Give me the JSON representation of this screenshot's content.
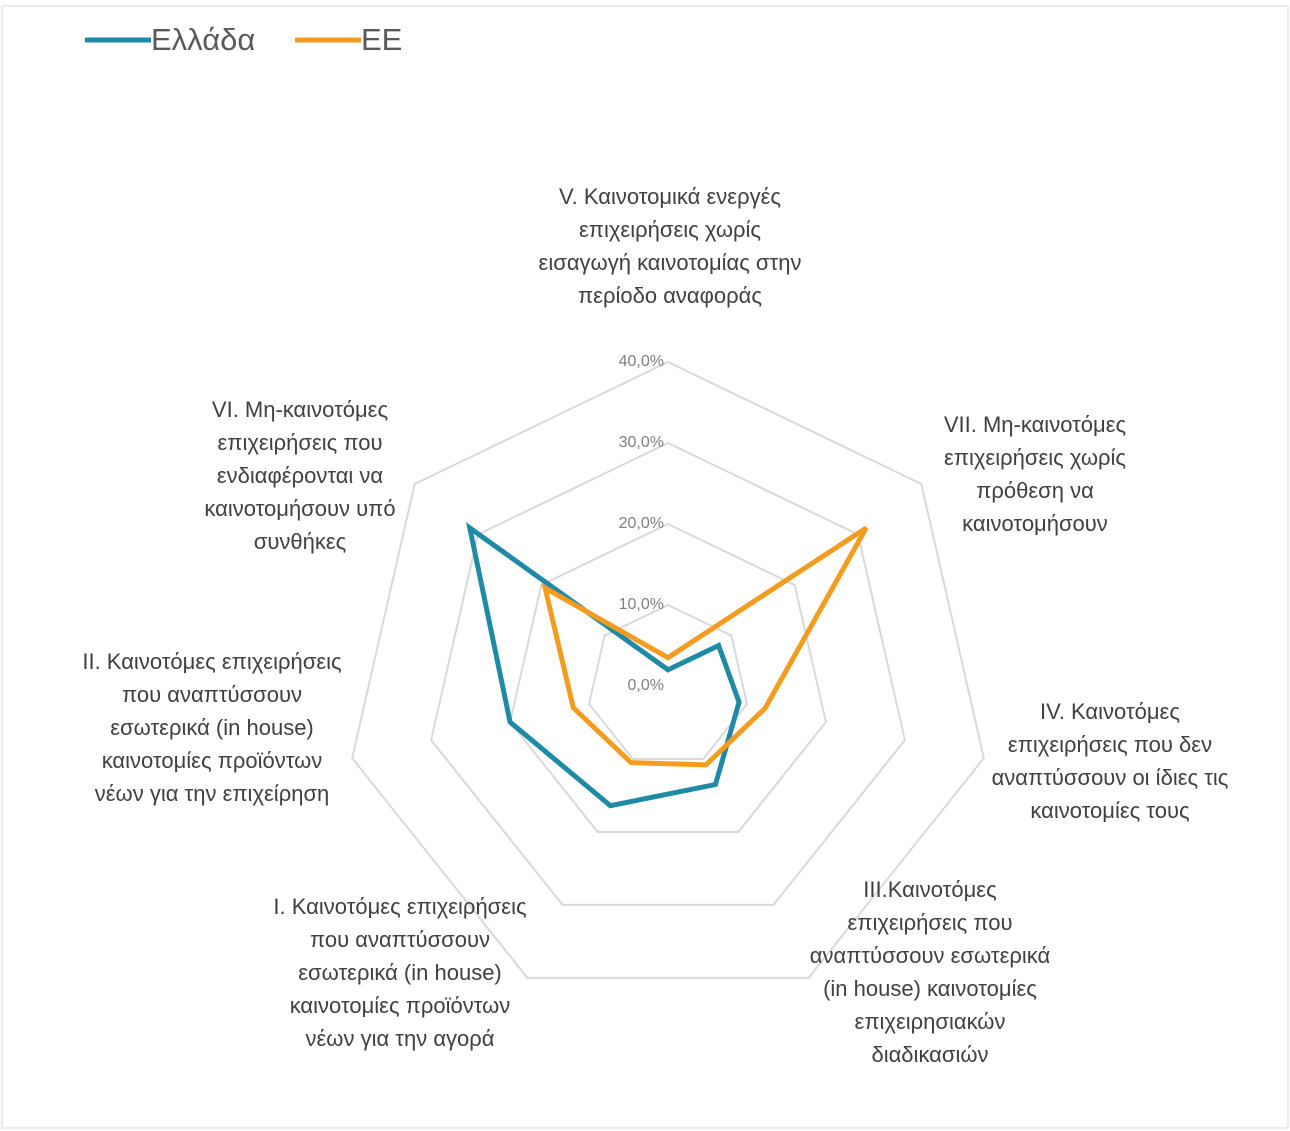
{
  "chart_data": {
    "type": "radar",
    "categories": [
      "V. Καινοτομικά ενεργές επιχειρήσεις χωρίς εισαγωγή καινοτομίας στην περίοδο αναφοράς",
      "VII. Μη-καινοτόμες επιχειρήσεις χωρίς πρόθεση να καινοτομήσουν",
      "IV. Καινοτόμες επιχειρήσεις που δεν αναπτύσσουν οι ίδιες τις καινοτομίες τους",
      "III.Καινοτόμες επιχειρήσεις που αναπτύσσουν εσωτερικά (in house) καινοτομίες επιχειρησιακών διαδικασιών",
      "I. Καινοτόμες επιχειρήσεις που αναπτύσσουν εσωτερικά (in house) καινοτομίες προϊόντων νέων για την αγορά",
      "II. Καινοτόμες επιχειρήσεις που αναπτύσσουν εσωτερικά (in house) καινοτομίες προϊόντων νέων για την επιχείρηση",
      "VI. Μη-καινοτόμες επιχειρήσεις που ενδιαφέρονται να καινοτομήσουν υπό συνθήκες"
    ],
    "series": [
      {
        "name": "Ελλάδα",
        "color": "#1f8aa6",
        "values": [
          2,
          8,
          9,
          13.5,
          16.4,
          20,
          31.3
        ]
      },
      {
        "name": "ΕΕ",
        "color": "#f39c1e",
        "values": [
          3.5,
          31.3,
          12.3,
          10.8,
          10.5,
          12,
          19.4
        ]
      }
    ],
    "ylim": [
      0,
      40
    ],
    "yticks": [
      {
        "value": 0,
        "label": "0,0%"
      },
      {
        "value": 10,
        "label": "10,0%"
      },
      {
        "value": 20,
        "label": "20,0%"
      },
      {
        "value": 30,
        "label": "30,0%"
      },
      {
        "value": 40,
        "label": "40,0%"
      }
    ],
    "grid": true,
    "legend": "top-left"
  }
}
